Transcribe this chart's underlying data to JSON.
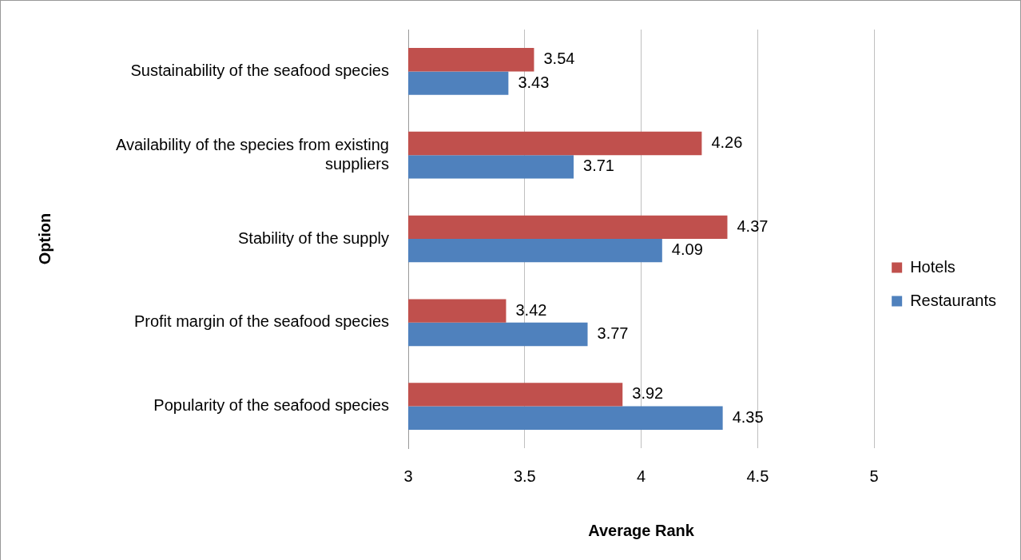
{
  "chart_data": {
    "type": "bar",
    "orientation": "horizontal",
    "xlabel": "Average Rank",
    "ylabel": "Option",
    "categories": [
      "Sustainability of the seafood species",
      "Availability of the species from existing suppliers",
      "Stability of the supply",
      "Profit margin of the seafood species",
      "Popularity of the seafood species"
    ],
    "series": [
      {
        "name": "Hotels",
        "color": "#c0504d",
        "values": [
          3.54,
          4.26,
          4.37,
          3.42,
          3.92
        ]
      },
      {
        "name": "Restaurants",
        "color": "#4f81bd",
        "values": [
          3.43,
          3.71,
          4.09,
          3.77,
          4.35
        ]
      }
    ],
    "xlim": [
      3,
      5
    ],
    "xticks": [
      3,
      3.5,
      4,
      4.5,
      5
    ],
    "grid": "x",
    "legend": "right",
    "data_labels": true
  }
}
